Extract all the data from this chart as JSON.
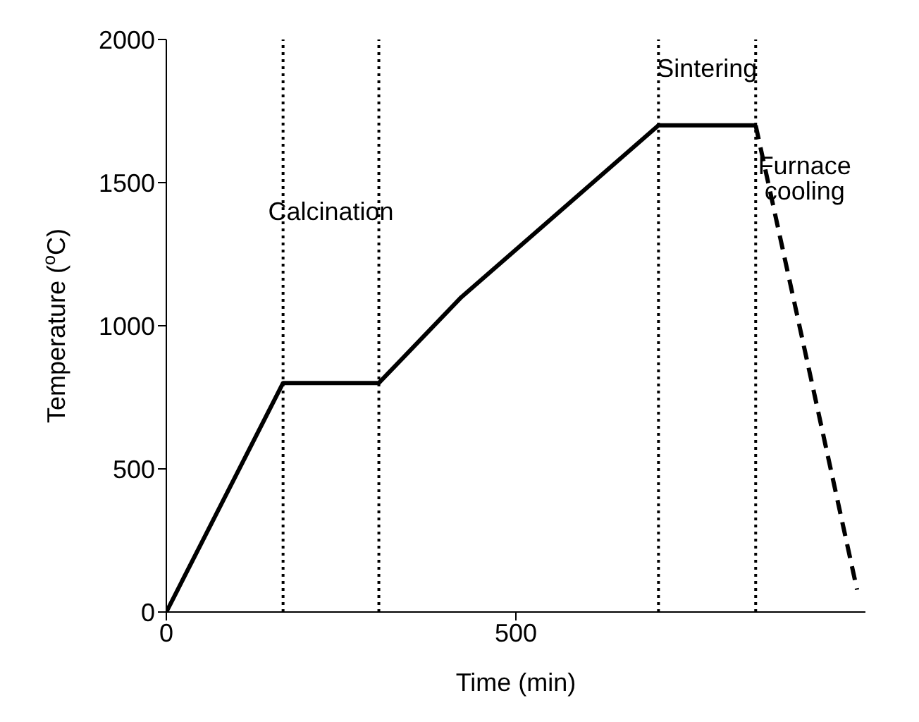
{
  "chart_data": {
    "type": "line",
    "xlabel": "Time (min)",
    "ylabel": "Temperature ($^{o}$C)",
    "xlim": [
      0,
      1000
    ],
    "xticks": [
      0,
      500
    ],
    "ylim": [
      0,
      2000
    ],
    "yticks": [
      0,
      500,
      1000,
      1500,
      2000
    ],
    "grid": false,
    "legend": false,
    "marker": "none",
    "series": [
      {
        "color": "#000000",
        "line_style": "solid",
        "x": [
          0,
          167,
          304,
          422,
          704,
          843
        ],
        "values": [
          0,
          800,
          800,
          1100,
          1700,
          1700
        ]
      },
      {
        "color": "#000000",
        "line_style": "dashed",
        "x": [
          843,
          988
        ],
        "values": [
          1700,
          78
        ]
      }
    ],
    "ref_lines": [
      {
        "axis": "x",
        "value": 167,
        "line_style": "dotted",
        "color": "#000000"
      },
      {
        "axis": "x",
        "value": 304,
        "line_style": "dotted",
        "color": "#000000"
      },
      {
        "axis": "x",
        "value": 704,
        "line_style": "dotted",
        "color": "#000000"
      },
      {
        "axis": "x",
        "value": 843,
        "line_style": "dotted",
        "color": "#000000"
      }
    ],
    "annotations": [
      "Calcination",
      "Sintering",
      "Furnace cooling"
    ]
  }
}
